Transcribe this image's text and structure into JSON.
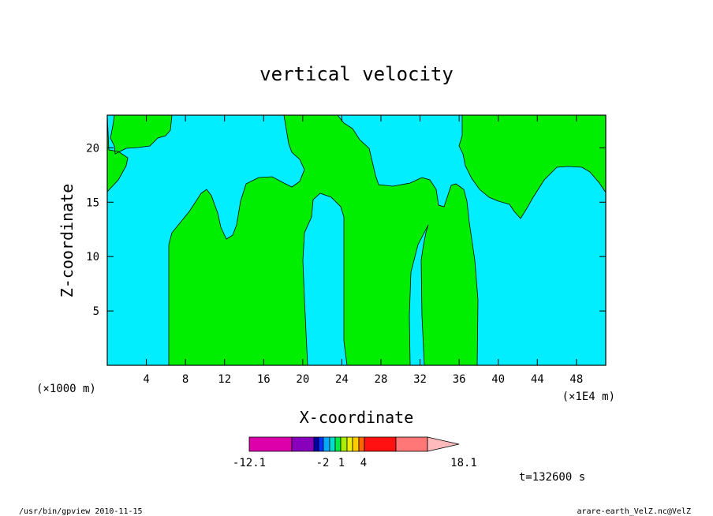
{
  "colors": {
    "background": "#ffffff",
    "positive": "#00ee00",
    "negative": "#00eeff",
    "contour": "#000000"
  },
  "chart_data": {
    "type": "contour",
    "title": "vertical velocity",
    "xlabel": "X-coordinate",
    "ylabel": "Z-coordinate",
    "x_scale_note_left": "(×1000 m)",
    "x_scale_note_right": "(×1E4 m)",
    "xlim": [
      0,
      51
    ],
    "ylim": [
      0,
      23
    ],
    "x_ticks": [
      4,
      8,
      12,
      16,
      20,
      24,
      28,
      32,
      36,
      40,
      44,
      48
    ],
    "y_ticks": [
      5,
      10,
      15,
      20
    ],
    "grid": false,
    "regions_positive_w": [
      {
        "name": "upper-left updraft",
        "x_range": [
          0,
          7
        ],
        "z_range": [
          16,
          23
        ]
      },
      {
        "name": "central updraft",
        "x_range": [
          6,
          21
        ],
        "z_range": [
          0,
          23
        ]
      },
      {
        "name": "updraft 24-31",
        "x_range": [
          24,
          31
        ],
        "z_range": [
          0,
          23
        ]
      },
      {
        "name": "updraft 32-38",
        "x_range": [
          32,
          38
        ],
        "z_range": [
          0,
          17
        ]
      },
      {
        "name": "upper-right updraft",
        "x_range": [
          36,
          51
        ],
        "z_range": [
          13,
          23
        ]
      }
    ],
    "colorbar": {
      "tick_labels": [
        "-12.1",
        "-2",
        "1",
        "4",
        "18.1"
      ],
      "colors": [
        "#dd00aa",
        "#8800bb",
        "#0000aa",
        "#0033ff",
        "#00aaff",
        "#00ddcc",
        "#00ee44",
        "#aaee00",
        "#eeee00",
        "#ffcc00",
        "#ff6600",
        "#ff1111",
        "#ff7777",
        "#ffbbbb"
      ],
      "extend": "max"
    },
    "time_label": "t=132600 s"
  },
  "footer": {
    "left": "/usr/bin/gpview  2010-11-15",
    "right": "arare-earth_VelZ.nc@VelZ"
  }
}
